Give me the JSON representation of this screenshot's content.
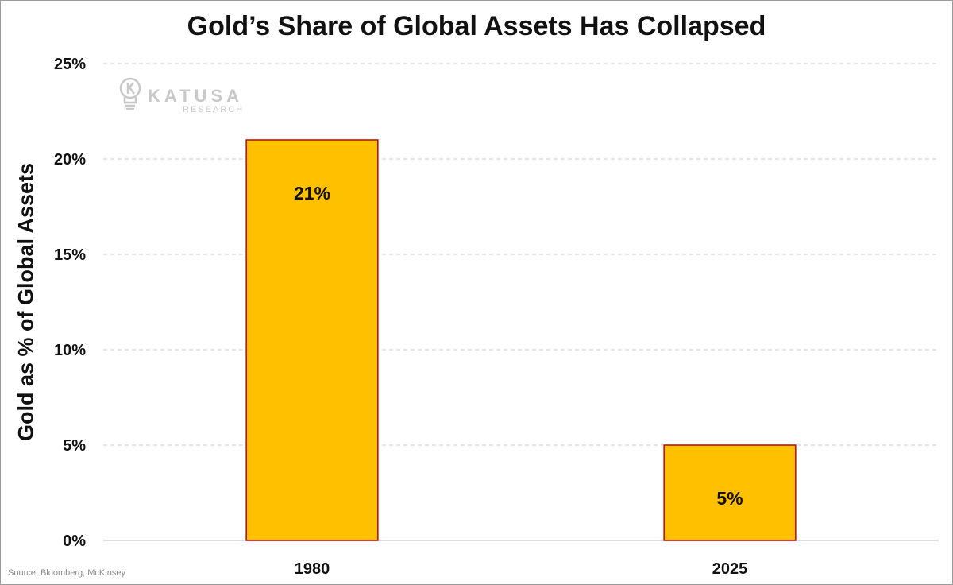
{
  "chart_data": {
    "type": "bar",
    "title": "Gold’s Share of Global Assets Has Collapsed",
    "ylabel": "Gold as % of Global Assets",
    "xlabel": "",
    "categories": [
      "1980",
      "2025"
    ],
    "values": [
      21,
      5
    ],
    "data_labels": [
      "21%",
      "5%"
    ],
    "yticks": [
      "0%",
      "5%",
      "10%",
      "15%",
      "20%",
      "25%"
    ],
    "ylim": [
      0,
      25
    ],
    "grid": true,
    "legend": "none",
    "bar_color": "#FFC000",
    "bar_edge_color": "#C00000"
  },
  "source": "Source: Bloomberg, McKinsey",
  "watermark": {
    "name": "KATUSA",
    "sub": "RESEARCH"
  }
}
